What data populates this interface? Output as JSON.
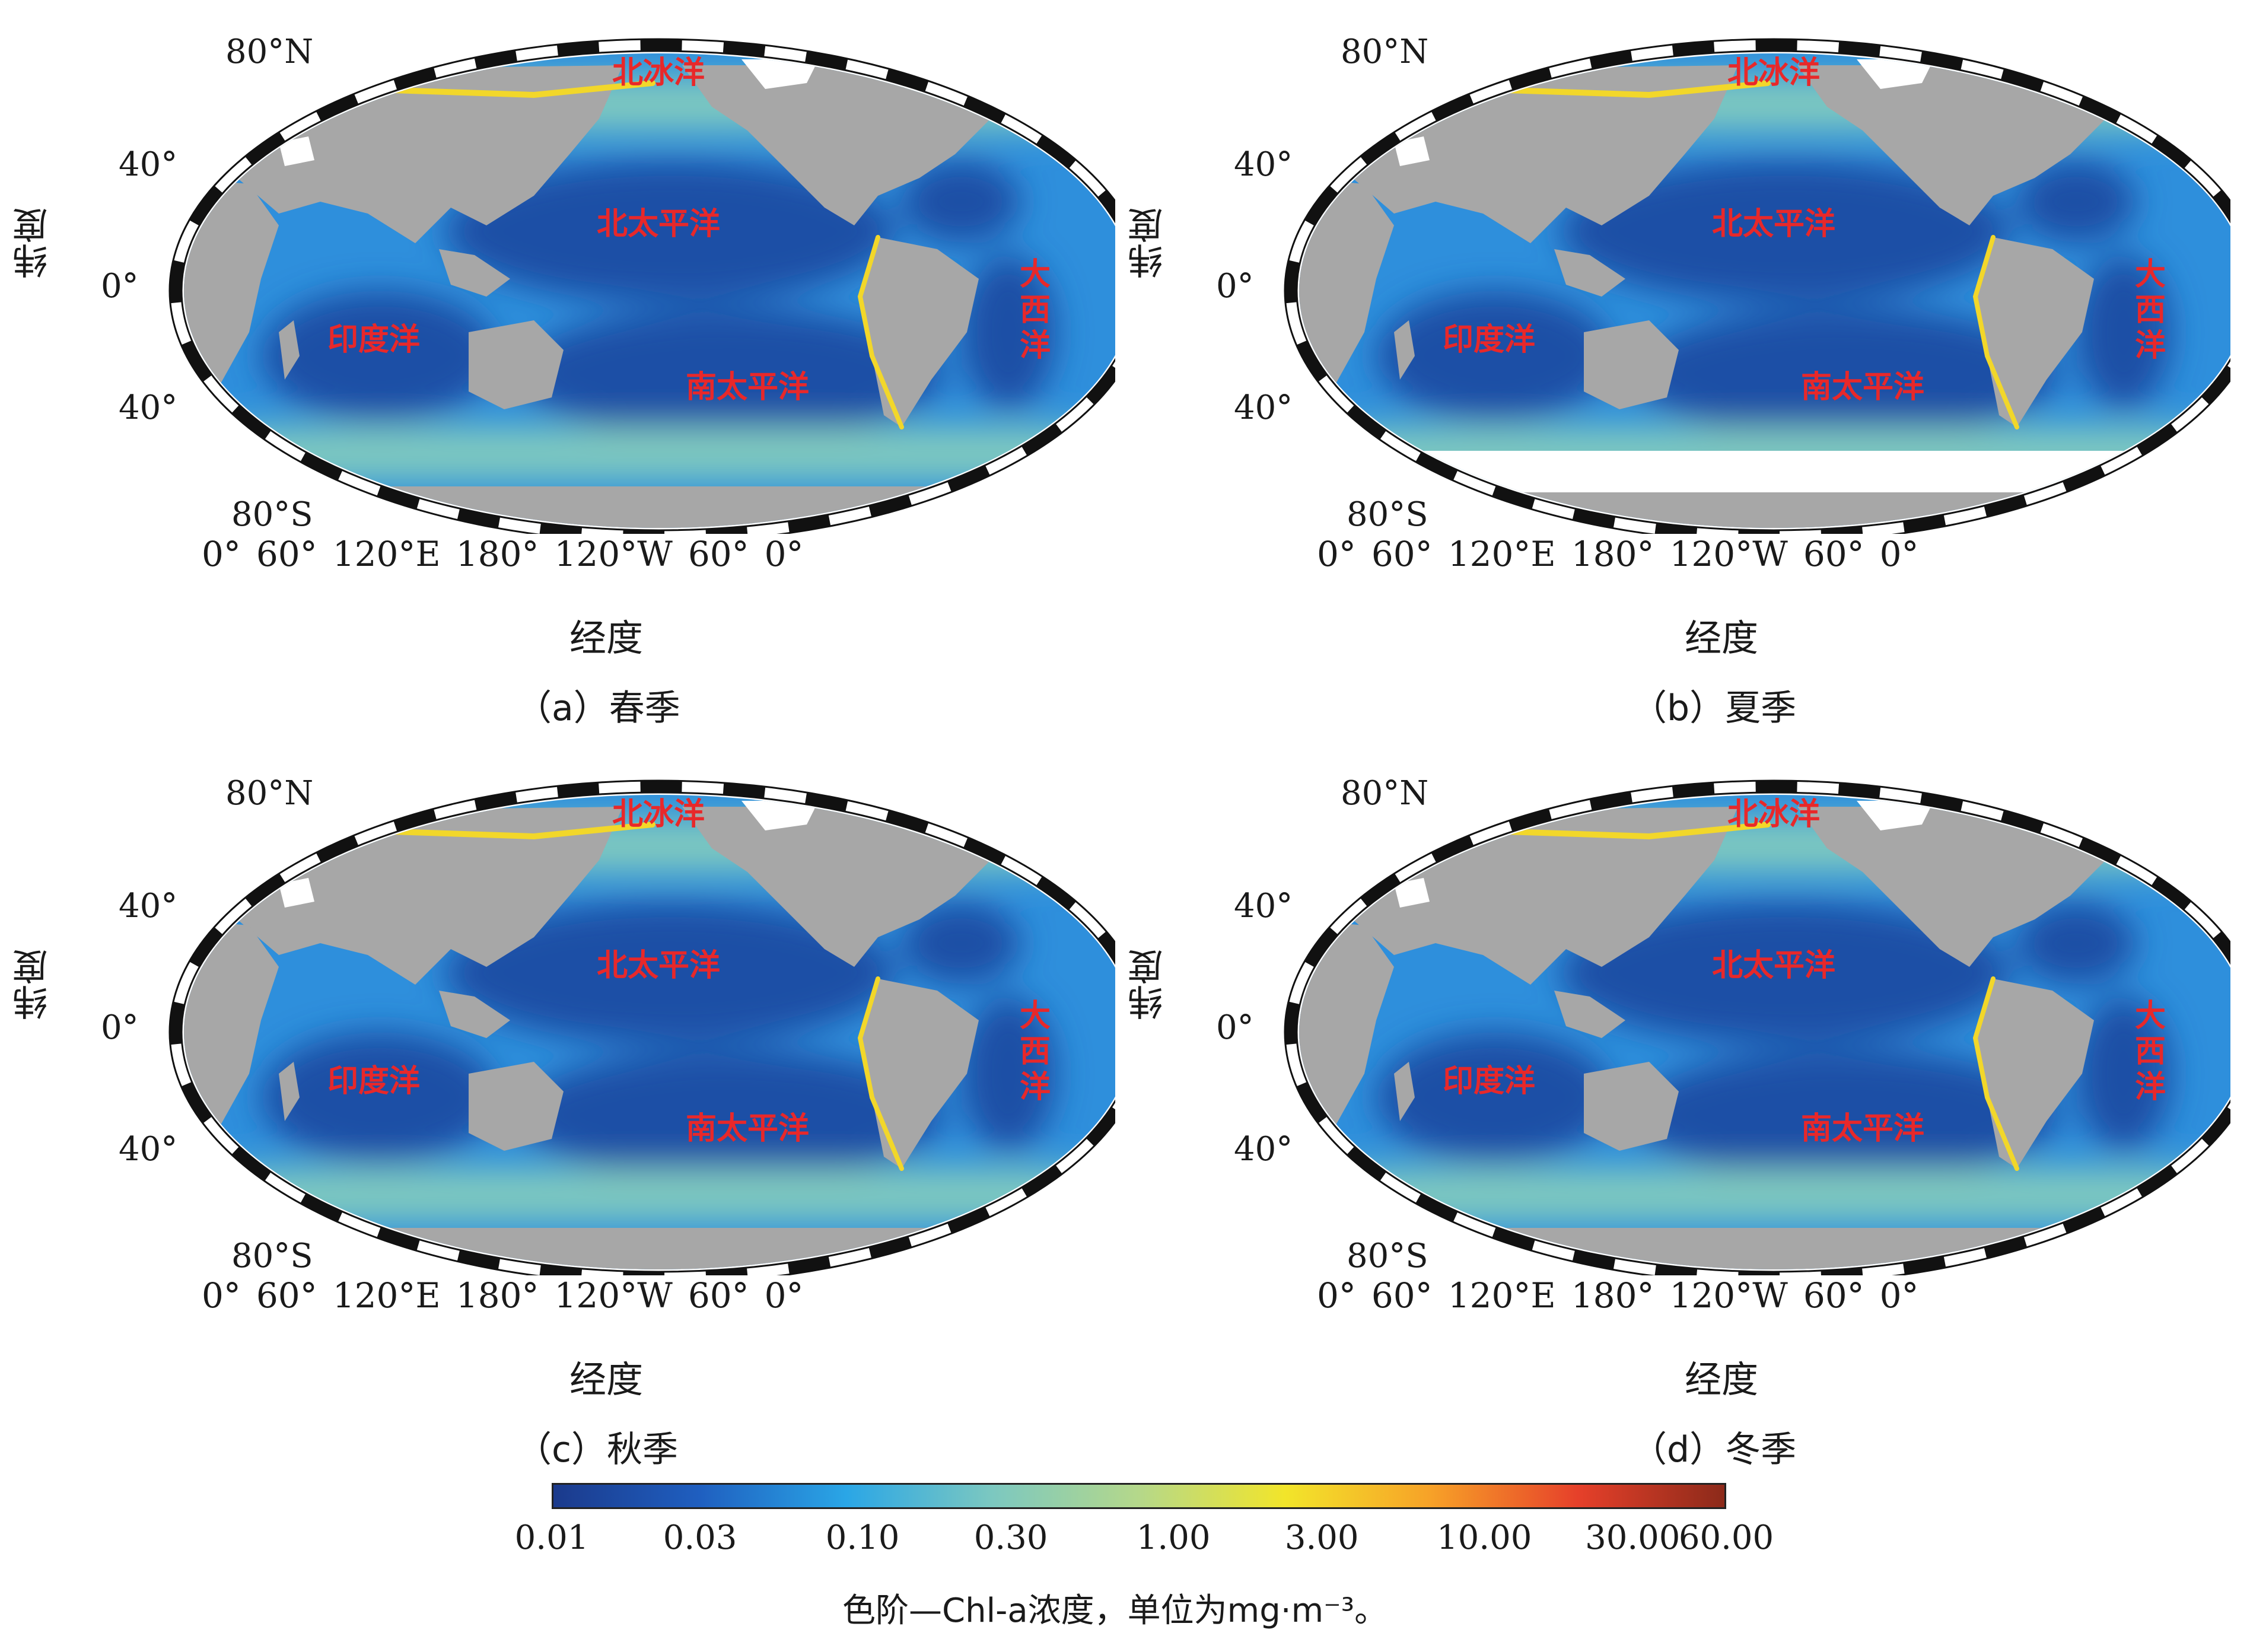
{
  "panels": [
    {
      "caption": "（a）春季",
      "lat_labels": [
        "80°N",
        "40°",
        "0°",
        "40°",
        "80°S"
      ],
      "ylabel": "纬度",
      "xlabel": "经度",
      "lon_labels": [
        "0°",
        "60°",
        "120°E",
        "180°",
        "120°W",
        "60°",
        "0°"
      ],
      "oceans": {
        "arctic": "北冰洋",
        "north_pacific": "北太平洋",
        "south_pacific": "南太平洋",
        "indian": "印度洋",
        "atlantic": "大西洋"
      },
      "south_polar_ice": false
    },
    {
      "caption": "（b）夏季",
      "lat_labels": [
        "80°N",
        "40°",
        "0°",
        "40°",
        "80°S"
      ],
      "ylabel": "纬度",
      "xlabel": "经度",
      "lon_labels": [
        "0°",
        "60°",
        "120°E",
        "180°",
        "120°W",
        "60°",
        "0°"
      ],
      "oceans": {
        "arctic": "北冰洋",
        "north_pacific": "北太平洋",
        "south_pacific": "南太平洋",
        "indian": "印度洋",
        "atlantic": "大西洋"
      },
      "south_polar_ice": true
    },
    {
      "caption": "（c）秋季",
      "lat_labels": [
        "80°N",
        "40°",
        "0°",
        "40°",
        "80°S"
      ],
      "ylabel": "纬度",
      "xlabel": "经度",
      "lon_labels": [
        "0°",
        "60°",
        "120°E",
        "180°",
        "120°W",
        "60°",
        "0°"
      ],
      "oceans": {
        "arctic": "北冰洋",
        "north_pacific": "北太平洋",
        "south_pacific": "南太平洋",
        "indian": "印度洋",
        "atlantic": "大西洋"
      },
      "south_polar_ice": false
    },
    {
      "caption": "（d）冬季",
      "lat_labels": [
        "80°N",
        "40°",
        "0°",
        "40°",
        "80°S"
      ],
      "ylabel": "纬度",
      "xlabel": "经度",
      "lon_labels": [
        "0°",
        "60°",
        "120°E",
        "180°",
        "120°W",
        "60°",
        "0°"
      ],
      "oceans": {
        "arctic": "北冰洋",
        "north_pacific": "北太平洋",
        "south_pacific": "南太平洋",
        "indian": "印度洋",
        "atlantic": "大西洋"
      },
      "south_polar_ice": false
    }
  ],
  "colorbar": {
    "title": "色阶—Chl-a浓度，单位为mg·m⁻³。",
    "ticks": [
      "0.01",
      "0.03",
      "0.10",
      "0.30",
      "1.00",
      "3.00",
      "10.00",
      "30.00",
      "60.00"
    ],
    "log_min": 0.01,
    "log_max": 60,
    "colors": [
      "#1b3a8c",
      "#1f5fc0",
      "#2aa6e6",
      "#7cc8c0",
      "#b5d88a",
      "#f2e52a",
      "#f7a128",
      "#e6402a",
      "#8c2a1a"
    ]
  },
  "map_colors": {
    "land": "#a7a7a7",
    "deep_ocean": "#1d4fa6",
    "mid_ocean": "#2e8fdc",
    "coastal": "#7fc9c0",
    "high": "#f2d72a",
    "very_high": "#e6402a",
    "ice": "#ffffff"
  }
}
